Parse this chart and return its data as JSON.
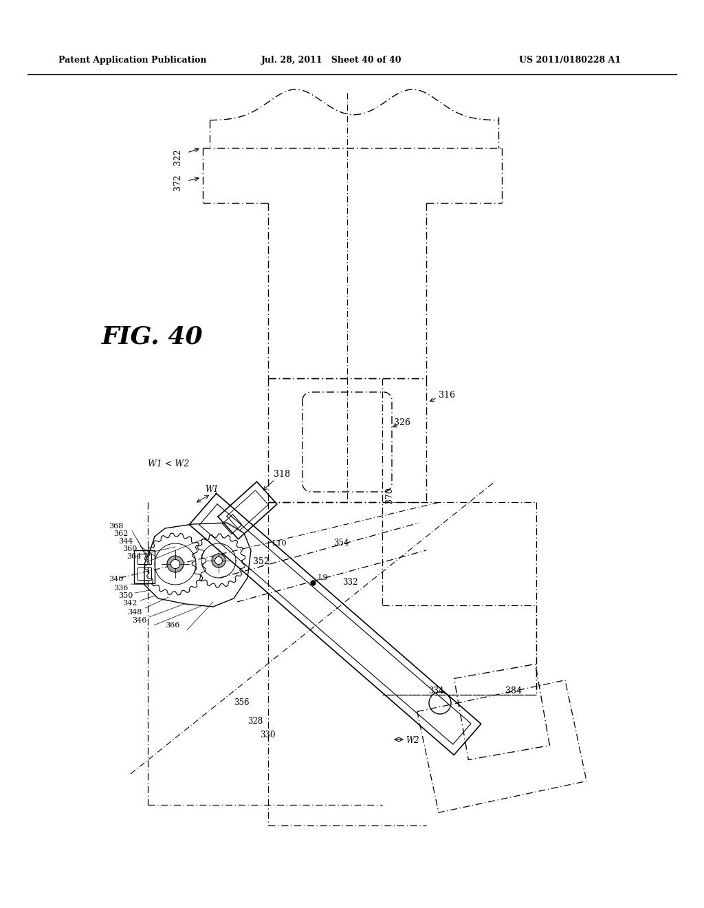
{
  "title_left": "Patent Application Publication",
  "title_mid": "Jul. 28, 2011   Sheet 40 of 40",
  "title_right": "US 2011/0180228 A1",
  "fig_label": "FIG. 40",
  "background_color": "#ffffff",
  "line_color": "#000000"
}
